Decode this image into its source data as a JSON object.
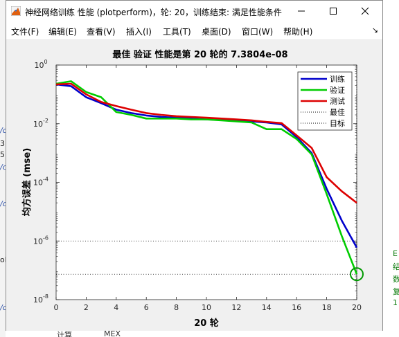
{
  "window": {
    "title": "神经网络训练 性能 (plotperform)，轮: 20，训练结束: 满足性能条件"
  },
  "menu": [
    {
      "label": "文件(F)",
      "name": "menu-file"
    },
    {
      "label": "编辑(E)",
      "name": "menu-edit"
    },
    {
      "label": "查看(V)",
      "name": "menu-view"
    },
    {
      "label": "插入(I)",
      "name": "menu-insert"
    },
    {
      "label": "工具(T)",
      "name": "menu-tools"
    },
    {
      "label": "桌面(D)",
      "name": "menu-desktop"
    },
    {
      "label": "窗口(W)",
      "name": "menu-window"
    },
    {
      "label": "帮助(H)",
      "name": "menu-help"
    }
  ],
  "chart_data": {
    "type": "line",
    "title": "最佳 验证 性能是第 20 轮的 7.3804e-08",
    "xlabel": "20 轮",
    "ylabel": "均方误差 (mse)",
    "yscale": "log",
    "xlim": [
      0,
      20
    ],
    "ylim": [
      1e-08,
      1
    ],
    "xticks": [
      "0",
      "2",
      "4",
      "6",
      "8",
      "10",
      "12",
      "14",
      "16",
      "18",
      "20"
    ],
    "yticks": [
      {
        "base": "10",
        "exp": "0",
        "value": 1
      },
      {
        "base": "10",
        "exp": "-2",
        "value": 0.01
      },
      {
        "base": "10",
        "exp": "-4",
        "value": 0.0001
      },
      {
        "base": "10",
        "exp": "-6",
        "value": 1e-06
      },
      {
        "base": "10",
        "exp": "-8",
        "value": 1e-08
      }
    ],
    "series": [
      {
        "name": "训练",
        "color": "#0000cc",
        "x": [
          0,
          1,
          2,
          3,
          4,
          5,
          6,
          7,
          8,
          9,
          10,
          11,
          12,
          13,
          14,
          15,
          16,
          17,
          18,
          19,
          20
        ],
        "values": [
          0.22,
          0.19,
          0.08,
          0.05,
          0.03,
          0.023,
          0.019,
          0.017,
          0.016,
          0.015,
          0.014,
          0.0135,
          0.013,
          0.012,
          0.011,
          0.0095,
          0.0035,
          0.001,
          6e-05,
          5e-06,
          6e-07
        ]
      },
      {
        "name": "验证",
        "color": "#00cc00",
        "x": [
          0,
          1,
          2,
          3,
          4,
          5,
          6,
          7,
          8,
          9,
          10,
          11,
          12,
          13,
          14,
          15,
          16,
          17,
          18,
          19,
          20
        ],
        "values": [
          0.23,
          0.28,
          0.12,
          0.08,
          0.025,
          0.02,
          0.015,
          0.015,
          0.015,
          0.014,
          0.014,
          0.013,
          0.012,
          0.011,
          0.0065,
          0.0065,
          0.003,
          0.0009,
          4e-05,
          1.5e-06,
          7.3804e-08
        ]
      },
      {
        "name": "测试",
        "color": "#dd0000",
        "x": [
          0,
          1,
          2,
          3,
          4,
          5,
          6,
          7,
          8,
          9,
          10,
          11,
          12,
          13,
          14,
          15,
          16,
          17,
          18,
          19,
          20
        ],
        "values": [
          0.22,
          0.23,
          0.1,
          0.055,
          0.04,
          0.03,
          0.023,
          0.02,
          0.018,
          0.017,
          0.016,
          0.015,
          0.014,
          0.013,
          0.0115,
          0.0105,
          0.004,
          0.0015,
          0.00015,
          5e-05,
          2e-05
        ]
      }
    ],
    "reference_lines": [
      {
        "name": "最佳",
        "style": "dotted",
        "x": 20,
        "y": 7.3804e-08,
        "color": "#000000"
      },
      {
        "name": "目标",
        "style": "dotted",
        "y": 1e-06,
        "color": "#000000"
      }
    ],
    "best_marker": {
      "x": 20,
      "y": 7.3804e-08,
      "color": "#009900"
    },
    "legend": {
      "position": "top-right"
    },
    "grid": false
  }
}
